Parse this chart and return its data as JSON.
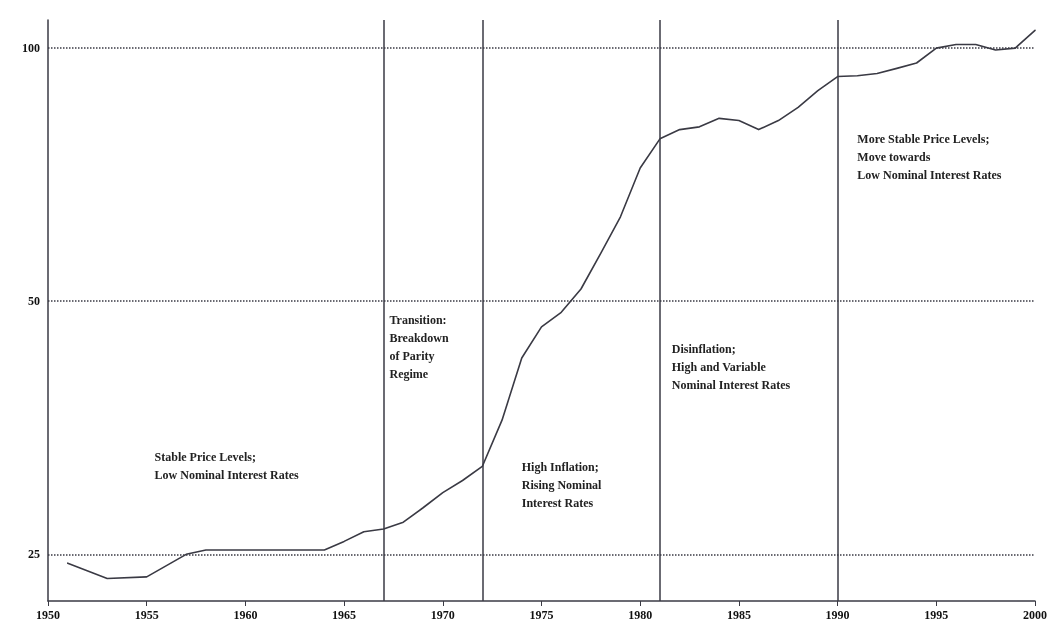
{
  "chart_data": {
    "type": "line",
    "x": [
      1951,
      1953,
      1955,
      1957,
      1958,
      1960,
      1962,
      1964,
      1965,
      1966,
      1967,
      1968,
      1969,
      1970,
      1971,
      1972,
      1973,
      1974,
      1975,
      1976,
      1977,
      1978,
      1979,
      1980,
      1981,
      1982,
      1983,
      1984,
      1985,
      1986,
      1987,
      1988,
      1989,
      1990,
      1991,
      1992,
      1993,
      1994,
      1995,
      1996,
      1997,
      1998,
      1999,
      2000
    ],
    "series": [
      {
        "color": "#3a3a44",
        "values": [
          24.4,
          23.4,
          23.5,
          25.0,
          25.3,
          25.3,
          25.3,
          25.3,
          25.9,
          26.6,
          26.8,
          27.3,
          28.4,
          29.6,
          30.6,
          31.8,
          36.1,
          42.8,
          46.6,
          48.5,
          51.7,
          57,
          63,
          72,
          78,
          80,
          80.6,
          82.5,
          82,
          80,
          82,
          85,
          89,
          92.5,
          92.7,
          93.3,
          94.6,
          96,
          100,
          101,
          101,
          99.5,
          100,
          105
        ]
      }
    ],
    "xlim": [
      1950,
      2000
    ],
    "xticks": [
      1950,
      1955,
      1960,
      1965,
      1970,
      1975,
      1980,
      1985,
      1990,
      1995,
      2000
    ],
    "ylim": [
      22,
      108
    ],
    "yticks": [
      25,
      50,
      100
    ],
    "log": true,
    "grid": "y",
    "marker": "none",
    "line_style": "solid",
    "ref_lines": [
      {
        "axis": "x",
        "value": 1967
      },
      {
        "axis": "x",
        "value": 1972
      },
      {
        "axis": "x",
        "value": 1981
      },
      {
        "axis": "x",
        "value": 1990
      }
    ],
    "annotations": [
      "Stable Price Levels;\nLow Nominal Interest Rates",
      "Transition:\nBreakdown\nof Parity\nRegime",
      "High Inflation;\nRising Nominal\nInterest Rates",
      "Disinflation;\nHigh and Variable\nNominal Interest Rates",
      "More Stable Price Levels;\nMove towards\nLow Nominal Interest Rates"
    ]
  }
}
